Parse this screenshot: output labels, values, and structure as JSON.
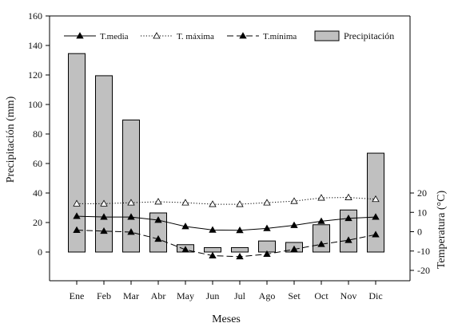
{
  "chart_data": {
    "type": "bar+line",
    "categories": [
      "Ene",
      "Feb",
      "Mar",
      "Abr",
      "May",
      "Jun",
      "Jul",
      "Ago",
      "Set",
      "Oct",
      "Nov",
      "Dic"
    ],
    "xlabel": "Meses",
    "ylabel_left": "Precipitación (mm)",
    "ylabel_right": "Temperatura (°C)",
    "ylim_left": [
      0,
      160
    ],
    "yticks_left": [
      0,
      20,
      40,
      60,
      80,
      100,
      120,
      140,
      160
    ],
    "ylim_right": [
      -20,
      20
    ],
    "yticks_right": [
      -20,
      -10,
      0,
      10,
      20
    ],
    "bar_color": "#c0c0c0",
    "legend_position": "top",
    "bars": {
      "name": "Precipitación",
      "values": [
        134.5,
        119.5,
        89.5,
        26.5,
        5.0,
        3.0,
        3.0,
        7.5,
        6.5,
        18.5,
        28.5,
        67.0
      ]
    },
    "series": [
      {
        "name": "T.media",
        "style": "solid",
        "marker": "filled-triangle",
        "values": [
          8.0,
          7.6,
          7.6,
          6.0,
          2.7,
          0.9,
          0.7,
          1.7,
          3.3,
          5.4,
          6.9,
          7.6
        ]
      },
      {
        "name": "T. máxima",
        "style": "dotted",
        "marker": "open-triangle",
        "values": [
          14.5,
          14.5,
          15.0,
          15.5,
          15.0,
          14.2,
          14.2,
          15.0,
          15.8,
          17.5,
          17.7,
          16.8
        ]
      },
      {
        "name": "T.mínima",
        "style": "dashed",
        "marker": "filled-triangle",
        "values": [
          0.8,
          0.3,
          -0.2,
          -3.8,
          -9.3,
          -12.4,
          -12.9,
          -11.6,
          -9.1,
          -6.5,
          -4.4,
          -1.5
        ]
      }
    ]
  }
}
